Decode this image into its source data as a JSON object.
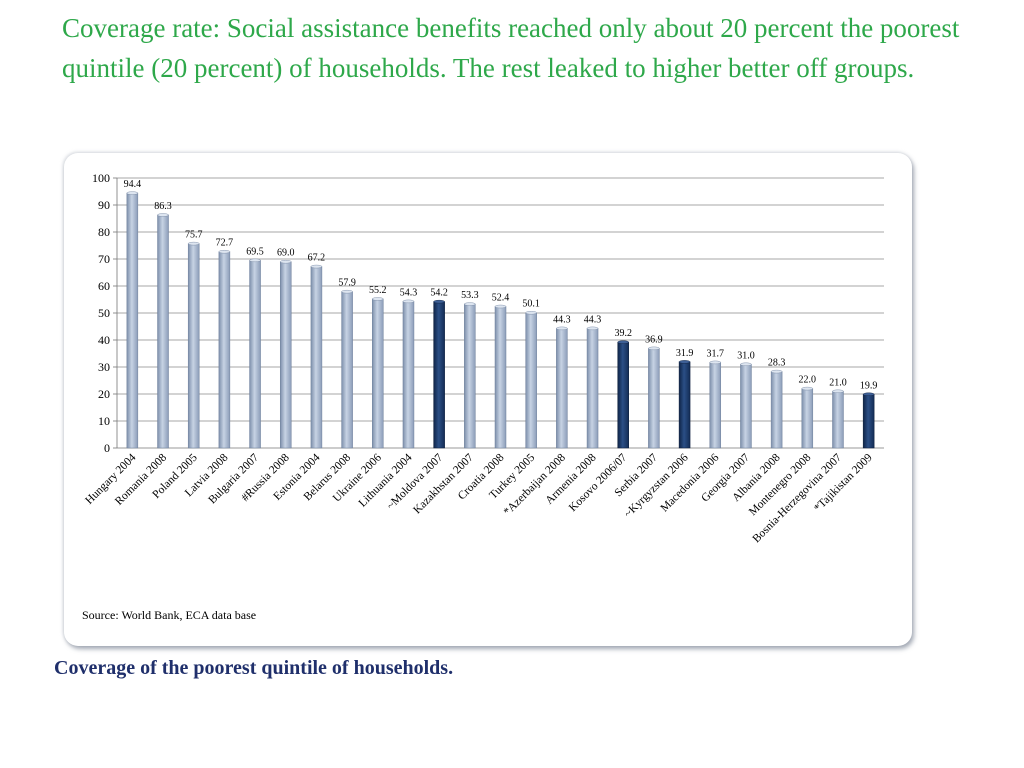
{
  "title": "Coverage rate: Social assistance benefits reached only about 20 percent the poorest quintile (20 percent) of households.  The rest leaked to higher better off groups.",
  "caption": "Coverage of the poorest quintile of households.",
  "source": "Source: World Bank, ECA data base",
  "colors": {
    "title": "#2ea84a",
    "caption": "#1f2f6b",
    "bar_light": "#a9b9d1",
    "bar_dark": "#1b3a6b"
  },
  "chart_data": {
    "type": "bar",
    "categories": [
      "Hungary 2004",
      "Romania 2008",
      "Poland 2005",
      "Latvia 2008",
      "Bulgaria 2007",
      "#Russia 2008",
      "Estonia 2004",
      "Belarus 2008",
      "Ukraine 2006",
      "Lithuania 2004",
      "~Moldova 2007",
      "Kazakhstan 2007",
      "Croatia 2008",
      "Turkey 2005",
      "*Azerbaijan 2008",
      "Armenia  2008",
      "Kosovo 2006/07",
      "Serbia 2007",
      "~Kyrgyzstan 2006",
      "Macedonia 2006",
      "Georgia 2007",
      "Albania 2008",
      "Montenegro 2008",
      "Bosnia-Herzegovina 2007",
      "*Tajikistan 2009"
    ],
    "values": [
      94.4,
      86.3,
      75.7,
      72.7,
      69.5,
      69.0,
      67.2,
      57.9,
      55.2,
      54.3,
      54.2,
      53.3,
      52.4,
      50.1,
      44.3,
      44.3,
      39.2,
      36.9,
      31.9,
      31.7,
      31.0,
      28.3,
      22.0,
      21.0,
      19.9
    ],
    "value_labels": [
      "94.4",
      "86.3",
      "75.7",
      "72.7",
      "69.5",
      "69.0",
      "67.2",
      "57.9",
      "55.2",
      "54.3",
      "54.2",
      "53.3",
      "52.4",
      "50.1",
      "44.3",
      "44.3",
      "39.2",
      "36.9",
      "31.9",
      "31.7",
      "31.0",
      "28.3",
      "22.0",
      "21.0",
      "19.9"
    ],
    "highlighted": [
      false,
      false,
      false,
      false,
      false,
      false,
      false,
      false,
      false,
      false,
      true,
      false,
      false,
      false,
      false,
      false,
      true,
      false,
      true,
      false,
      false,
      false,
      false,
      false,
      true
    ],
    "ylim": [
      0,
      100
    ],
    "yticks": [
      "0",
      "10",
      "20",
      "30",
      "40",
      "50",
      "60",
      "70",
      "80",
      "90",
      "100"
    ],
    "grid": true,
    "legend": "none"
  }
}
